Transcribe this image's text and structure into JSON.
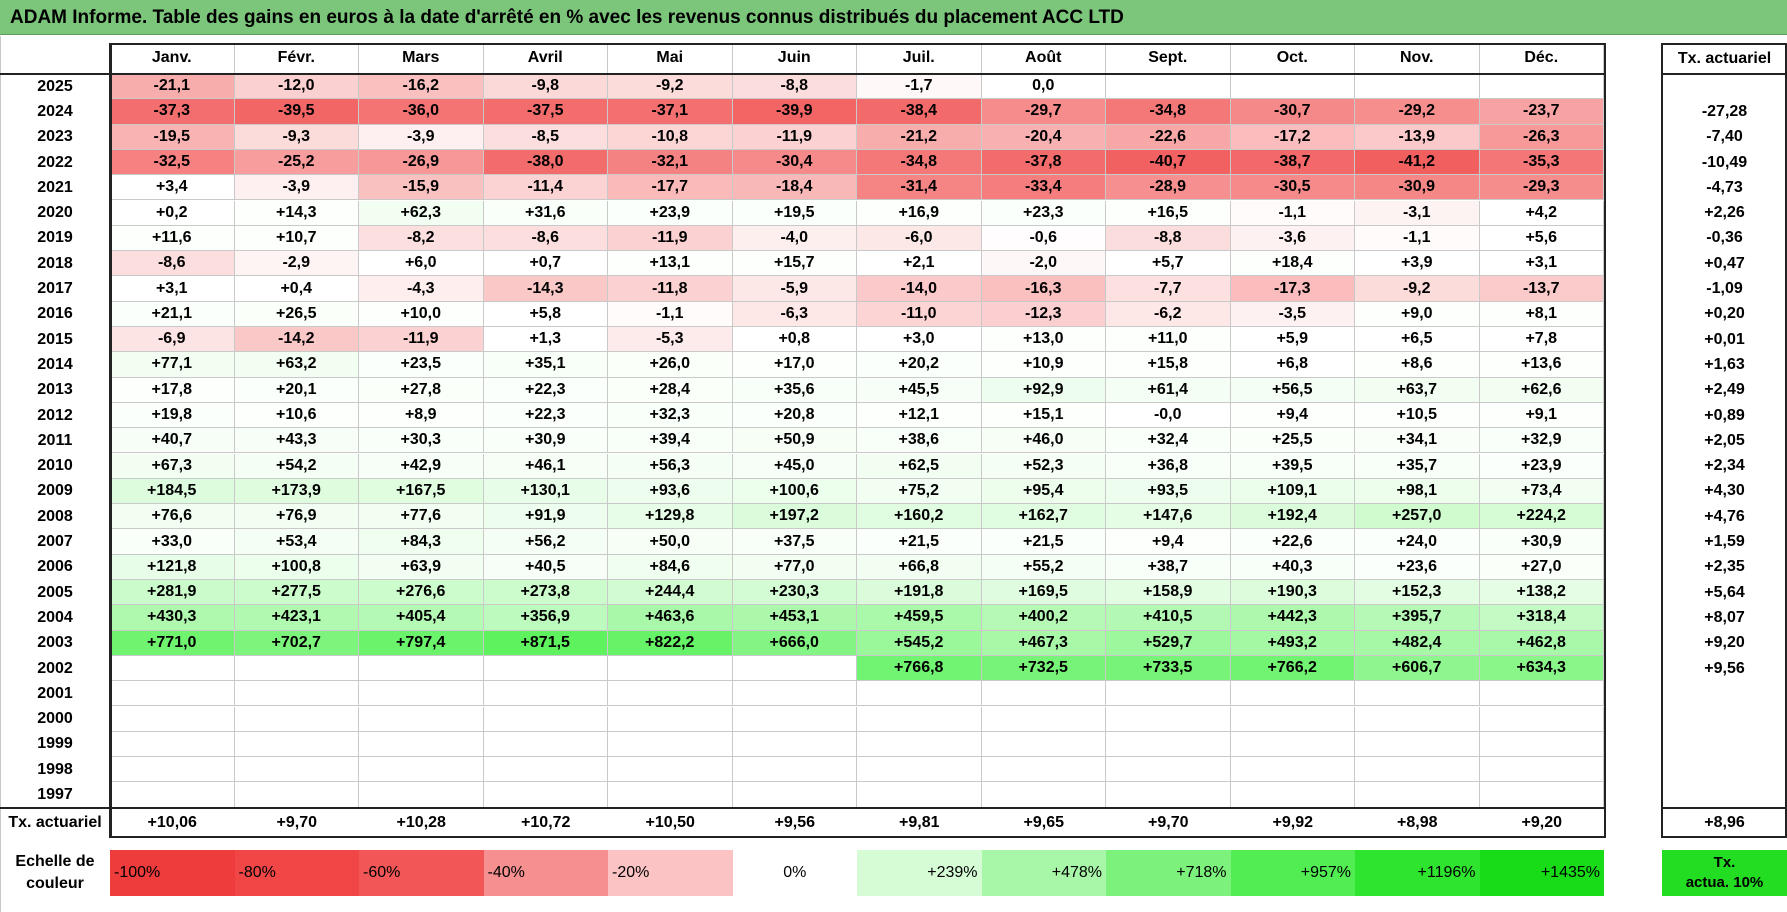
{
  "title": "ADAM Informe. Table des gains en euros à la date d'arrêté en % avec les revenus connus distribués du placement ACC LTD",
  "months": [
    "Janv.",
    "Févr.",
    "Mars",
    "Avril",
    "Mai",
    "Juin",
    "Juil.",
    "Août",
    "Sept.",
    "Oct.",
    "Nov.",
    "Déc."
  ],
  "annual_header": "Tx. actuariel",
  "years": [
    {
      "year": "2025",
      "values": [
        "-21,1",
        "-12,0",
        "-16,2",
        "-9,8",
        "-9,2",
        "-8,8",
        "-1,7",
        "0,0",
        "",
        "",
        "",
        ""
      ],
      "annual": ""
    },
    {
      "year": "2024",
      "values": [
        "-37,3",
        "-39,5",
        "-36,0",
        "-37,5",
        "-37,1",
        "-39,9",
        "-38,4",
        "-29,7",
        "-34,8",
        "-30,7",
        "-29,2",
        "-23,7"
      ],
      "annual": "-27,28"
    },
    {
      "year": "2023",
      "values": [
        "-19,5",
        "-9,3",
        "-3,9",
        "-8,5",
        "-10,8",
        "-11,9",
        "-21,2",
        "-20,4",
        "-22,6",
        "-17,2",
        "-13,9",
        "-26,3"
      ],
      "annual": "-7,40"
    },
    {
      "year": "2022",
      "values": [
        "-32,5",
        "-25,2",
        "-26,9",
        "-38,0",
        "-32,1",
        "-30,4",
        "-34,8",
        "-37,8",
        "-40,7",
        "-38,7",
        "-41,2",
        "-35,3"
      ],
      "annual": "-10,49"
    },
    {
      "year": "2021",
      "values": [
        "+3,4",
        "-3,9",
        "-15,9",
        "-11,4",
        "-17,7",
        "-18,4",
        "-31,4",
        "-33,4",
        "-28,9",
        "-30,5",
        "-30,9",
        "-29,3"
      ],
      "annual": "-4,73"
    },
    {
      "year": "2020",
      "values": [
        "+0,2",
        "+14,3",
        "+62,3",
        "+31,6",
        "+23,9",
        "+19,5",
        "+16,9",
        "+23,3",
        "+16,5",
        "-1,1",
        "-3,1",
        "+4,2"
      ],
      "annual": "+2,26"
    },
    {
      "year": "2019",
      "values": [
        "+11,6",
        "+10,7",
        "-8,2",
        "-8,6",
        "-11,9",
        "-4,0",
        "-6,0",
        "-0,6",
        "-8,8",
        "-3,6",
        "-1,1",
        "+5,6"
      ],
      "annual": "-0,36"
    },
    {
      "year": "2018",
      "values": [
        "-8,6",
        "-2,9",
        "+6,0",
        "+0,7",
        "+13,1",
        "+15,7",
        "+2,1",
        "-2,0",
        "+5,7",
        "+18,4",
        "+3,9",
        "+3,1"
      ],
      "annual": "+0,47"
    },
    {
      "year": "2017",
      "values": [
        "+3,1",
        "+0,4",
        "-4,3",
        "-14,3",
        "-11,8",
        "-5,9",
        "-14,0",
        "-16,3",
        "-7,7",
        "-17,3",
        "-9,2",
        "-13,7"
      ],
      "annual": "-1,09"
    },
    {
      "year": "2016",
      "values": [
        "+21,1",
        "+26,5",
        "+10,0",
        "+5,8",
        "-1,1",
        "-6,3",
        "-11,0",
        "-12,3",
        "-6,2",
        "-3,5",
        "+9,0",
        "+8,1"
      ],
      "annual": "+0,20"
    },
    {
      "year": "2015",
      "values": [
        "-6,9",
        "-14,2",
        "-11,9",
        "+1,3",
        "-5,3",
        "+0,8",
        "+3,0",
        "+13,0",
        "+11,0",
        "+5,9",
        "+6,5",
        "+7,8"
      ],
      "annual": "+0,01"
    },
    {
      "year": "2014",
      "values": [
        "+77,1",
        "+63,2",
        "+23,5",
        "+35,1",
        "+26,0",
        "+17,0",
        "+20,2",
        "+10,9",
        "+15,8",
        "+6,8",
        "+8,6",
        "+13,6"
      ],
      "annual": "+1,63"
    },
    {
      "year": "2013",
      "values": [
        "+17,8",
        "+20,1",
        "+27,8",
        "+22,3",
        "+28,4",
        "+35,6",
        "+45,5",
        "+92,9",
        "+61,4",
        "+56,5",
        "+63,7",
        "+62,6"
      ],
      "annual": "+2,49"
    },
    {
      "year": "2012",
      "values": [
        "+19,8",
        "+10,6",
        "+8,9",
        "+22,3",
        "+32,3",
        "+20,8",
        "+12,1",
        "+15,1",
        "-0,0",
        "+9,4",
        "+10,5",
        "+9,1"
      ],
      "annual": "+0,89"
    },
    {
      "year": "2011",
      "values": [
        "+40,7",
        "+43,3",
        "+30,3",
        "+30,9",
        "+39,4",
        "+50,9",
        "+38,6",
        "+46,0",
        "+32,4",
        "+25,5",
        "+34,1",
        "+32,9"
      ],
      "annual": "+2,05"
    },
    {
      "year": "2010",
      "values": [
        "+67,3",
        "+54,2",
        "+42,9",
        "+46,1",
        "+56,3",
        "+45,0",
        "+62,5",
        "+52,3",
        "+36,8",
        "+39,5",
        "+35,7",
        "+23,9"
      ],
      "annual": "+2,34"
    },
    {
      "year": "2009",
      "values": [
        "+184,5",
        "+173,9",
        "+167,5",
        "+130,1",
        "+93,6",
        "+100,6",
        "+75,2",
        "+95,4",
        "+93,5",
        "+109,1",
        "+98,1",
        "+73,4"
      ],
      "annual": "+4,30"
    },
    {
      "year": "2008",
      "values": [
        "+76,6",
        "+76,9",
        "+77,6",
        "+91,9",
        "+129,8",
        "+197,2",
        "+160,2",
        "+162,7",
        "+147,6",
        "+192,4",
        "+257,0",
        "+224,2"
      ],
      "annual": "+4,76"
    },
    {
      "year": "2007",
      "values": [
        "+33,0",
        "+53,4",
        "+84,3",
        "+56,2",
        "+50,0",
        "+37,5",
        "+21,5",
        "+21,5",
        "+9,4",
        "+22,6",
        "+24,0",
        "+30,9"
      ],
      "annual": "+1,59"
    },
    {
      "year": "2006",
      "values": [
        "+121,8",
        "+100,8",
        "+63,9",
        "+40,5",
        "+84,6",
        "+77,0",
        "+66,8",
        "+55,2",
        "+38,7",
        "+40,3",
        "+23,6",
        "+27,0"
      ],
      "annual": "+2,35"
    },
    {
      "year": "2005",
      "values": [
        "+281,9",
        "+277,5",
        "+276,6",
        "+273,8",
        "+244,4",
        "+230,3",
        "+191,8",
        "+169,5",
        "+158,9",
        "+190,3",
        "+152,3",
        "+138,2"
      ],
      "annual": "+5,64"
    },
    {
      "year": "2004",
      "values": [
        "+430,3",
        "+423,1",
        "+405,4",
        "+356,9",
        "+463,6",
        "+453,1",
        "+459,5",
        "+400,2",
        "+410,5",
        "+442,3",
        "+395,7",
        "+318,4"
      ],
      "annual": "+8,07"
    },
    {
      "year": "2003",
      "values": [
        "+771,0",
        "+702,7",
        "+797,4",
        "+871,5",
        "+822,2",
        "+666,0",
        "+545,2",
        "+467,3",
        "+529,7",
        "+493,2",
        "+482,4",
        "+462,8"
      ],
      "annual": "+9,20"
    },
    {
      "year": "2002",
      "values": [
        "",
        "",
        "",
        "",
        "",
        "",
        "+766,8",
        "+732,5",
        "+733,5",
        "+766,2",
        "+606,7",
        "+634,3"
      ],
      "annual": "+9,56"
    },
    {
      "year": "2001",
      "values": [
        "",
        "",
        "",
        "",
        "",
        "",
        "",
        "",
        "",
        "",
        "",
        ""
      ],
      "annual": ""
    },
    {
      "year": "2000",
      "values": [
        "",
        "",
        "",
        "",
        "",
        "",
        "",
        "",
        "",
        "",
        "",
        ""
      ],
      "annual": ""
    },
    {
      "year": "1999",
      "values": [
        "",
        "",
        "",
        "",
        "",
        "",
        "",
        "",
        "",
        "",
        "",
        ""
      ],
      "annual": ""
    },
    {
      "year": "1998",
      "values": [
        "",
        "",
        "",
        "",
        "",
        "",
        "",
        "",
        "",
        "",
        "",
        ""
      ],
      "annual": ""
    },
    {
      "year": "1997",
      "values": [
        "",
        "",
        "",
        "",
        "",
        "",
        "",
        "",
        "",
        "",
        "",
        ""
      ],
      "annual": ""
    }
  ],
  "footer": {
    "label": "Tx. actuariel",
    "values": [
      "+10,06",
      "+9,70",
      "+10,28",
      "+10,72",
      "+10,50",
      "+9,56",
      "+9,81",
      "+9,65",
      "+9,70",
      "+9,92",
      "+8,98",
      "+9,20"
    ],
    "annual": "+8,96"
  },
  "legend": {
    "label_line1": "Echelle de",
    "label_line2": "couleur",
    "cells": [
      {
        "text": "-100%",
        "color": "#ee3b3b",
        "align": "left"
      },
      {
        "text": "-80%",
        "color": "#f04646",
        "align": "left"
      },
      {
        "text": "-60%",
        "color": "#f25656",
        "align": "left"
      },
      {
        "text": "-40%",
        "color": "#f69090",
        "align": "left"
      },
      {
        "text": "-20%",
        "color": "#fbc3c3",
        "align": "left"
      },
      {
        "text": "0%",
        "color": "#ffffff",
        "align": "center"
      },
      {
        "text": "+239%",
        "color": "#d6fcd6",
        "align": "right"
      },
      {
        "text": "+478%",
        "color": "#a8f7a8",
        "align": "right"
      },
      {
        "text": "+718%",
        "color": "#7cf27c",
        "align": "right"
      },
      {
        "text": "+957%",
        "color": "#52ed52",
        "align": "right"
      },
      {
        "text": "+1196%",
        "color": "#2fe42f",
        "align": "right"
      },
      {
        "text": "+1435%",
        "color": "#18dc18",
        "align": "right"
      }
    ],
    "last_line1": "Tx.",
    "last_line2": "actua. 10%",
    "last_color": "#22dd22"
  },
  "colors": {
    "title_bg": "#7cc67c",
    "negative_max": "#f25c5c",
    "positive_max": "#5cf25c"
  }
}
